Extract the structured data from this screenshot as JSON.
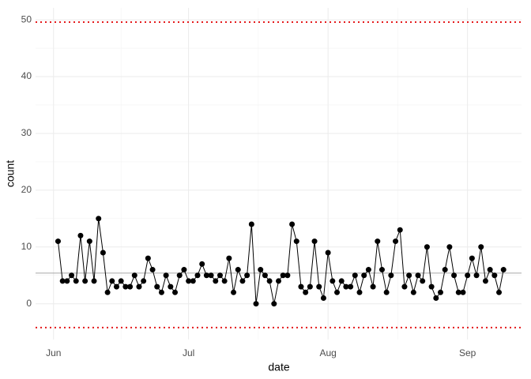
{
  "chart_data": {
    "type": "line",
    "x_label": "date",
    "y_label": "count",
    "categories": [
      "Jun",
      null,
      null,
      null,
      null,
      null,
      null,
      null,
      null,
      null,
      null,
      null,
      null,
      null,
      null,
      null,
      null,
      null,
      null,
      null,
      null,
      null,
      null,
      null,
      null,
      null,
      null,
      null,
      null,
      null,
      "Jul",
      null,
      null,
      null,
      null,
      null,
      null,
      null,
      null,
      null,
      null,
      null,
      null,
      null,
      null,
      null,
      null,
      null,
      null,
      null,
      null,
      null,
      null,
      null,
      null,
      null,
      null,
      null,
      null,
      null,
      null,
      "Aug",
      null,
      null,
      null,
      null,
      null,
      null,
      null,
      null,
      null,
      null,
      null,
      null,
      null,
      null,
      null,
      null,
      null,
      null,
      null,
      null,
      null,
      null,
      null,
      null,
      null,
      null,
      null,
      null,
      null,
      null,
      "Sep",
      null,
      null,
      null,
      null,
      null,
      null,
      null,
      null
    ],
    "values": [
      null,
      11,
      4,
      4,
      5,
      4,
      12,
      4,
      11,
      4,
      15,
      9,
      2,
      4,
      3,
      4,
      3,
      3,
      5,
      3,
      4,
      8,
      6,
      3,
      2,
      5,
      3,
      2,
      5,
      6,
      4,
      4,
      5,
      7,
      5,
      5,
      4,
      5,
      4,
      8,
      2,
      6,
      4,
      5,
      14,
      0,
      6,
      5,
      4,
      0,
      4,
      5,
      5,
      14,
      11,
      3,
      2,
      3,
      11,
      3,
      1,
      9,
      4,
      2,
      4,
      3,
      3,
      5,
      2,
      5,
      6,
      3,
      11,
      6,
      2,
      5,
      11,
      13,
      3,
      5,
      2,
      5,
      4,
      10,
      3,
      1,
      2,
      6,
      10,
      5,
      2,
      2,
      5,
      8,
      5,
      10,
      4,
      6,
      5,
      2,
      6
    ],
    "color": "#000000",
    "ylim": [
      -6.3,
      52.1
    ],
    "yticks": [
      0,
      10,
      20,
      30,
      40,
      50
    ],
    "grid": true,
    "hlines": [
      {
        "value": 49.6,
        "color": "#e41a1c",
        "dashed": true
      },
      {
        "value": -4.2,
        "color": "#e41a1c",
        "dashed": true
      },
      {
        "value": 5.4,
        "color": "#a6a6a6",
        "dashed": false
      }
    ]
  }
}
